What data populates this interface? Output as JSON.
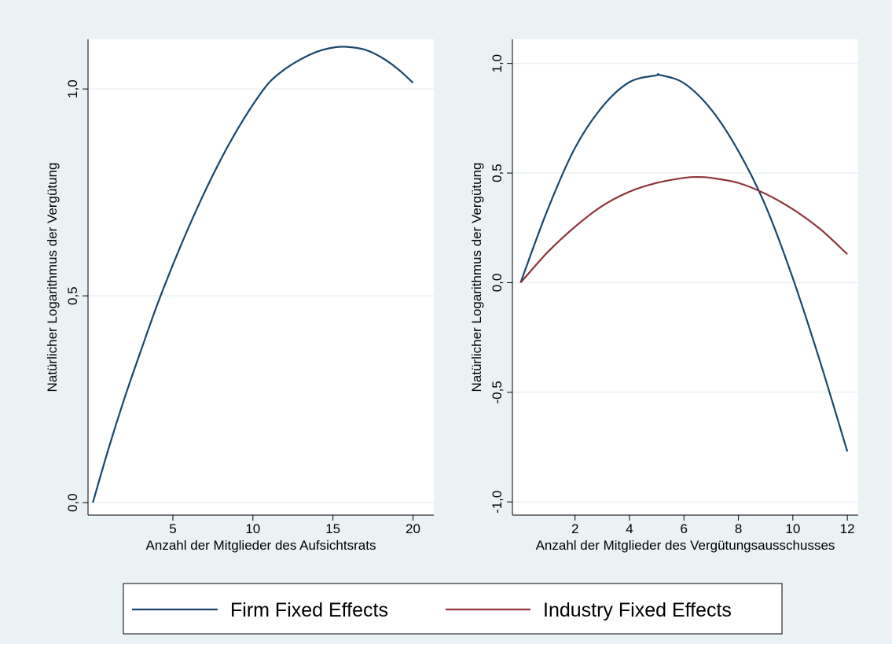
{
  "colors": {
    "outer_background": "#eaf2f3",
    "plot_background": "#ffffff",
    "gridline": "#eaf2f3",
    "firm_series": "#1a476f",
    "industry_series": "#90353b",
    "axis": "#000000"
  },
  "legend": {
    "placement": "bottom-center",
    "entries": [
      {
        "label": "Firm Fixed Effects",
        "color": "#1a476f"
      },
      {
        "label": "Industry Fixed Effects",
        "color": "#90353b"
      }
    ]
  },
  "chart_data": [
    {
      "type": "line",
      "xlabel": "Anzahl der Mitglieder des Aufsichtsrats",
      "ylabel": "Natürlicher Logarithmus der Vergütung",
      "xlim": [
        -0.3,
        21.3
      ],
      "ylim": [
        -0.03,
        1.12
      ],
      "xticks": [
        5,
        10,
        15,
        20
      ],
      "xtick_labels": [
        "5",
        "10",
        "15",
        "20"
      ],
      "yticks": [
        0,
        0.5,
        1.0
      ],
      "ytick_labels": [
        "0,0",
        "0,5",
        "1,0"
      ],
      "grid": true,
      "series": [
        {
          "name": "Firm Fixed Effects",
          "color": "#1a476f",
          "x": [
            0,
            1,
            2,
            3,
            4,
            5,
            6,
            7,
            8,
            9,
            10,
            11,
            12,
            13,
            14,
            15,
            15.8,
            17,
            18,
            19,
            20
          ],
          "y": [
            0.0,
            0.133,
            0.255,
            0.367,
            0.476,
            0.575,
            0.667,
            0.752,
            0.83,
            0.9,
            0.962,
            1.015,
            1.048,
            1.072,
            1.09,
            1.1,
            1.102,
            1.095,
            1.077,
            1.05,
            1.015
          ]
        }
      ]
    },
    {
      "type": "line",
      "xlabel": "Anzahl der Mitglieder des Vergütungsausschusses",
      "ylabel": "Natürlicher Logarithmus der Vergütung",
      "xlim": [
        -0.3,
        12.4
      ],
      "ylim": [
        -1.06,
        1.11
      ],
      "xticks": [
        2,
        4,
        6,
        8,
        10,
        12
      ],
      "xtick_labels": [
        "2",
        "4",
        "6",
        "8",
        "10",
        "12"
      ],
      "yticks": [
        -1.0,
        -0.5,
        0,
        0.5,
        1.0
      ],
      "ytick_labels": [
        "-1,0",
        "-0,5",
        "0,0",
        "0,5",
        "1,0"
      ],
      "grid": true,
      "series": [
        {
          "name": "Firm Fixed Effects",
          "color": "#1a476f",
          "x": [
            0,
            1,
            2,
            3,
            4,
            5,
            5.1,
            6,
            7,
            8,
            9,
            10,
            11,
            12
          ],
          "y": [
            0.0,
            0.335,
            0.615,
            0.802,
            0.915,
            0.946,
            0.948,
            0.91,
            0.79,
            0.6,
            0.35,
            0.02,
            -0.36,
            -0.77
          ]
        },
        {
          "name": "Industry Fixed Effects",
          "color": "#90353b",
          "x": [
            0,
            1,
            2,
            3,
            4,
            5,
            6,
            6.5,
            7,
            8,
            9,
            10,
            11,
            12
          ],
          "y": [
            0.0,
            0.14,
            0.255,
            0.35,
            0.415,
            0.455,
            0.478,
            0.482,
            0.478,
            0.455,
            0.405,
            0.335,
            0.245,
            0.13
          ]
        }
      ]
    }
  ]
}
